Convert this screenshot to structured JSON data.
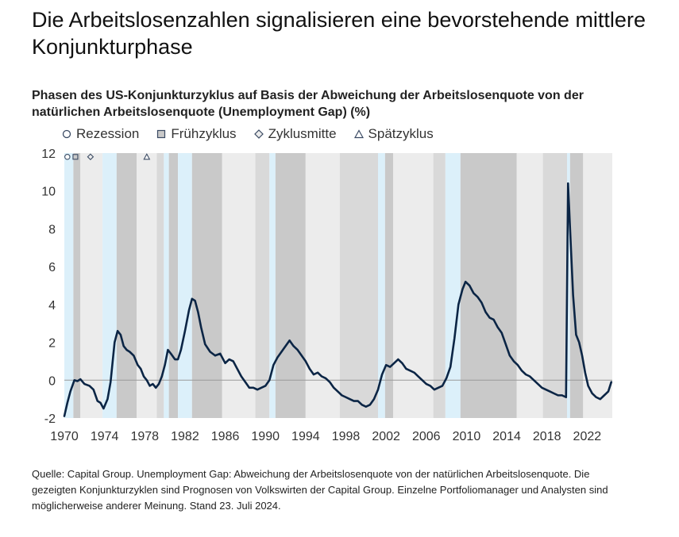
{
  "headline": "Die Arbeitslosenzahlen signalisieren eine bevorstehende mittlere Konjunkturphase",
  "source": "Quelle: Capital Group. Unemployment Gap: Abweichung der Arbeitslosenquote von der natürlichen Arbeitslosenquote. Die gezeigten Konjunkturzyklen sind Prognosen von Volkswirten der Capital Group. Einzelne Portfoliomanager und Analysten sind möglicherweise anderer Meinung. Stand 23. Juli 2024.",
  "colors": {
    "line": "#0b2545",
    "recession": "#dcf0fa",
    "early": "#c9c9c9",
    "mid": "#ececec",
    "late": "#d9d9d9",
    "zero_line": "#9a9a9a"
  },
  "chart_data": {
    "type": "line",
    "title": "Phasen des US-Konjunkturzyklus auf Basis der Abweichung der Arbeitslosenquote von der natürlichen Arbeitslosenquote (Unemployment Gap) (%)",
    "xlabel": "",
    "ylabel": "",
    "xlim": [
      1970,
      2024.5
    ],
    "ylim": [
      -2,
      12
    ],
    "x_ticks": [
      1970,
      1974,
      1978,
      1982,
      1986,
      1990,
      1994,
      1998,
      2002,
      2006,
      2010,
      2014,
      2018,
      2022
    ],
    "y_ticks": [
      -2,
      0,
      2,
      4,
      6,
      8,
      10,
      12
    ],
    "legend": [
      {
        "key": "recession",
        "label": "Rezession",
        "marker": "circle"
      },
      {
        "key": "early",
        "label": "Frühzyklus",
        "marker": "square"
      },
      {
        "key": "mid",
        "label": "Zyklusmitte",
        "marker": "diamond"
      },
      {
        "key": "late",
        "label": "Spätzyklus",
        "marker": "triangle"
      }
    ],
    "phases": [
      {
        "phase": "recession",
        "start": 1970.0,
        "end": 1970.9
      },
      {
        "phase": "early",
        "start": 1970.9,
        "end": 1971.6
      },
      {
        "phase": "mid",
        "start": 1971.6,
        "end": 1973.8
      },
      {
        "phase": "recession",
        "start": 1973.8,
        "end": 1975.2
      },
      {
        "phase": "early",
        "start": 1975.2,
        "end": 1977.2
      },
      {
        "phase": "mid",
        "start": 1977.2,
        "end": 1979.2
      },
      {
        "phase": "late",
        "start": 1979.2,
        "end": 1979.9
      },
      {
        "phase": "recession",
        "start": 1979.9,
        "end": 1980.4
      },
      {
        "phase": "early",
        "start": 1980.4,
        "end": 1981.3
      },
      {
        "phase": "recession",
        "start": 1981.3,
        "end": 1982.7
      },
      {
        "phase": "early",
        "start": 1982.7,
        "end": 1985.7
      },
      {
        "phase": "mid",
        "start": 1985.7,
        "end": 1989.0
      },
      {
        "phase": "late",
        "start": 1989.0,
        "end": 1990.4
      },
      {
        "phase": "recession",
        "start": 1990.4,
        "end": 1991.0
      },
      {
        "phase": "early",
        "start": 1991.0,
        "end": 1994.0
      },
      {
        "phase": "mid",
        "start": 1994.0,
        "end": 1997.4
      },
      {
        "phase": "late",
        "start": 1997.4,
        "end": 2001.2
      },
      {
        "phase": "recession",
        "start": 2001.2,
        "end": 2001.9
      },
      {
        "phase": "early",
        "start": 2001.9,
        "end": 2002.7
      },
      {
        "phase": "mid",
        "start": 2002.7,
        "end": 2006.7
      },
      {
        "phase": "late",
        "start": 2006.7,
        "end": 2007.9
      },
      {
        "phase": "recession",
        "start": 2007.9,
        "end": 2009.4
      },
      {
        "phase": "early",
        "start": 2009.4,
        "end": 2015.0
      },
      {
        "phase": "mid",
        "start": 2015.0,
        "end": 2017.6
      },
      {
        "phase": "late",
        "start": 2017.6,
        "end": 2020.0
      },
      {
        "phase": "recession",
        "start": 2020.0,
        "end": 2020.3
      },
      {
        "phase": "early",
        "start": 2020.3,
        "end": 2021.6
      },
      {
        "phase": "mid",
        "start": 2021.6,
        "end": 2024.5
      }
    ],
    "marker_points": [
      {
        "phase": "recession",
        "x": 1970.3,
        "y": 11.8
      },
      {
        "phase": "early",
        "x": 1971.1,
        "y": 11.8
      },
      {
        "phase": "mid",
        "x": 1972.6,
        "y": 11.8
      },
      {
        "phase": "late",
        "x": 1978.2,
        "y": 11.8
      }
    ],
    "series": [
      {
        "name": "Unemployment Gap",
        "x": [
          1970.0,
          1970.3,
          1970.6,
          1971.0,
          1971.3,
          1971.6,
          1972.0,
          1972.5,
          1972.9,
          1973.3,
          1973.6,
          1973.9,
          1974.3,
          1974.6,
          1975.0,
          1975.3,
          1975.6,
          1975.9,
          1976.2,
          1976.5,
          1976.9,
          1977.3,
          1977.6,
          1977.9,
          1978.2,
          1978.5,
          1978.8,
          1979.1,
          1979.4,
          1979.7,
          1980.0,
          1980.3,
          1980.6,
          1981.0,
          1981.3,
          1981.6,
          1982.0,
          1982.4,
          1982.7,
          1983.0,
          1983.3,
          1983.6,
          1984.0,
          1984.5,
          1985.0,
          1985.5,
          1986.0,
          1986.4,
          1986.8,
          1987.2,
          1987.6,
          1988.0,
          1988.4,
          1988.8,
          1989.2,
          1989.6,
          1990.0,
          1990.4,
          1990.8,
          1991.2,
          1991.6,
          1992.0,
          1992.4,
          1992.8,
          1993.2,
          1993.6,
          1994.0,
          1994.4,
          1994.8,
          1995.2,
          1995.6,
          1996.0,
          1996.4,
          1996.8,
          1997.2,
          1997.6,
          1998.0,
          1998.4,
          1998.8,
          1999.2,
          1999.6,
          2000.0,
          2000.4,
          2000.8,
          2001.2,
          2001.6,
          2002.0,
          2002.4,
          2002.8,
          2003.2,
          2003.6,
          2004.0,
          2004.4,
          2004.8,
          2005.2,
          2005.6,
          2006.0,
          2006.4,
          2006.8,
          2007.2,
          2007.6,
          2008.0,
          2008.4,
          2008.8,
          2009.2,
          2009.6,
          2009.9,
          2010.3,
          2010.7,
          2011.1,
          2011.5,
          2011.9,
          2012.3,
          2012.7,
          2013.1,
          2013.5,
          2013.9,
          2014.3,
          2014.7,
          2015.1,
          2015.5,
          2015.9,
          2016.3,
          2016.7,
          2017.1,
          2017.5,
          2017.9,
          2018.3,
          2018.7,
          2019.1,
          2019.5,
          2019.9,
          2020.1,
          2020.3,
          2020.6,
          2020.9,
          2021.2,
          2021.5,
          2021.8,
          2022.1,
          2022.5,
          2022.9,
          2023.3,
          2023.7,
          2024.1,
          2024.4
        ],
        "values": [
          -1.9,
          -1.2,
          -0.6,
          0.0,
          -0.05,
          0.05,
          -0.2,
          -0.3,
          -0.5,
          -1.1,
          -1.2,
          -1.5,
          -1.0,
          -0.1,
          2.0,
          2.6,
          2.4,
          1.8,
          1.6,
          1.5,
          1.3,
          0.8,
          0.6,
          0.2,
          0.0,
          -0.3,
          -0.2,
          -0.4,
          -0.2,
          0.2,
          0.8,
          1.6,
          1.4,
          1.1,
          1.1,
          1.6,
          2.6,
          3.7,
          4.3,
          4.2,
          3.6,
          2.8,
          1.9,
          1.5,
          1.3,
          1.4,
          0.9,
          1.1,
          1.0,
          0.6,
          0.2,
          -0.1,
          -0.4,
          -0.4,
          -0.5,
          -0.4,
          -0.3,
          0.0,
          0.8,
          1.2,
          1.5,
          1.8,
          2.1,
          1.8,
          1.6,
          1.3,
          1.0,
          0.6,
          0.3,
          0.4,
          0.2,
          0.1,
          -0.1,
          -0.4,
          -0.6,
          -0.8,
          -0.9,
          -1.0,
          -1.1,
          -1.1,
          -1.3,
          -1.4,
          -1.3,
          -1.0,
          -0.5,
          0.3,
          0.8,
          0.7,
          0.9,
          1.1,
          0.9,
          0.6,
          0.5,
          0.4,
          0.2,
          0.0,
          -0.2,
          -0.3,
          -0.5,
          -0.4,
          -0.3,
          0.1,
          0.7,
          2.2,
          4.0,
          4.8,
          5.2,
          5.0,
          4.6,
          4.4,
          4.1,
          3.6,
          3.3,
          3.2,
          2.8,
          2.5,
          1.9,
          1.3,
          1.0,
          0.8,
          0.5,
          0.3,
          0.2,
          0.0,
          -0.2,
          -0.4,
          -0.5,
          -0.6,
          -0.7,
          -0.8,
          -0.8,
          -0.9,
          10.4,
          8.0,
          4.5,
          2.4,
          2.0,
          1.3,
          0.4,
          -0.3,
          -0.7,
          -0.9,
          -1.0,
          -0.8,
          -0.6,
          -0.1
        ]
      }
    ]
  }
}
